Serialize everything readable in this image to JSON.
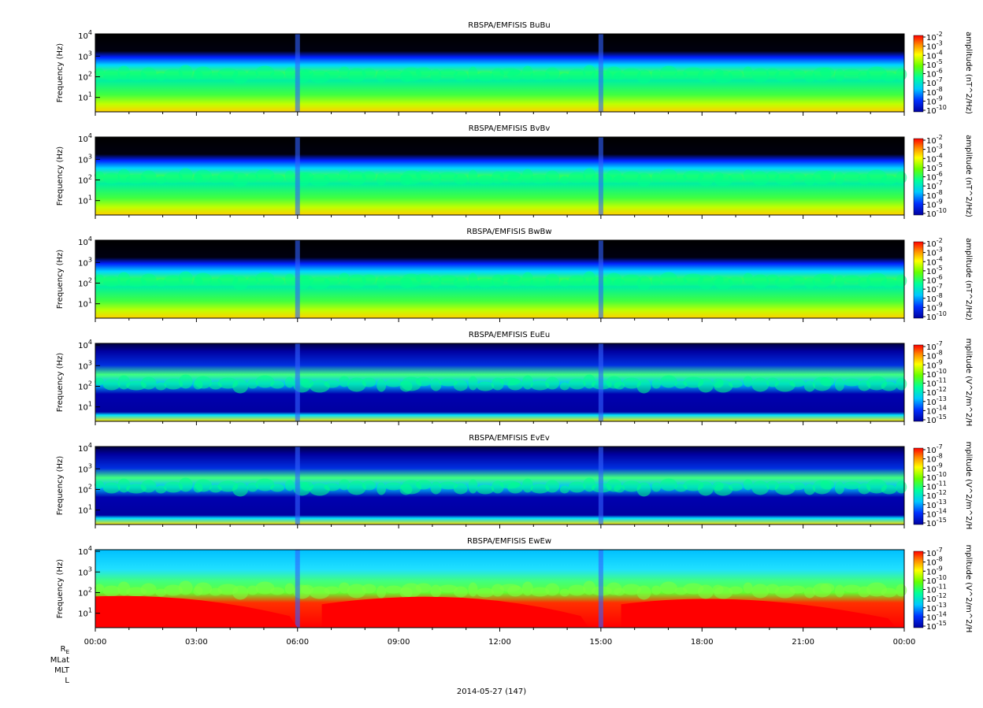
{
  "chart_data": [
    {
      "type": "heatmap",
      "title": "RBSPA/EMFISIS  BuBu",
      "ylabel": "Frequency (Hz)",
      "yscale": "log",
      "y_ticks": [
        "10^1",
        "10^2",
        "10^3",
        "10^4"
      ],
      "ylim": [
        2,
        12000
      ],
      "colorbar_label": "amplitude (nT^2/Hz)",
      "colorbar_ticks": [
        "10^-2",
        "10^-3",
        "10^-4",
        "10^-5",
        "10^-6",
        "10^-7",
        "10^-8",
        "10^-9",
        "10^-10"
      ],
      "colors": {
        "low": "#0000a0",
        "mid": "#00ff66",
        "high": "#ff0000"
      }
    },
    {
      "type": "heatmap",
      "title": "RBSPA/EMFISIS  BvBv",
      "ylabel": "Frequency (Hz)",
      "yscale": "log",
      "y_ticks": [
        "10^1",
        "10^2",
        "10^3",
        "10^4"
      ],
      "ylim": [
        2,
        12000
      ],
      "colorbar_label": "amplitude (nT^2/Hz)",
      "colorbar_ticks": [
        "10^-2",
        "10^-3",
        "10^-4",
        "10^-5",
        "10^-6",
        "10^-7",
        "10^-8",
        "10^-9",
        "10^-10"
      ]
    },
    {
      "type": "heatmap",
      "title": "RBSPA/EMFISIS  BwBw",
      "ylabel": "Frequency (Hz)",
      "yscale": "log",
      "y_ticks": [
        "10^1",
        "10^2",
        "10^3",
        "10^4"
      ],
      "ylim": [
        2,
        12000
      ],
      "colorbar_label": "amplitude (nT^2/Hz)",
      "colorbar_ticks": [
        "10^-2",
        "10^-3",
        "10^-4",
        "10^-5",
        "10^-6",
        "10^-7",
        "10^-8",
        "10^-9",
        "10^-10"
      ]
    },
    {
      "type": "heatmap",
      "title": "RBSPA/EMFISIS  EuEu",
      "ylabel": "Frequency (Hz)",
      "yscale": "log",
      "y_ticks": [
        "10^1",
        "10^2",
        "10^3",
        "10^4"
      ],
      "ylim": [
        2,
        12000
      ],
      "colorbar_label": "mplitude (V^2/m^2/H",
      "colorbar_ticks": [
        "10^-7",
        "10^-8",
        "10^-9",
        "10^-10",
        "10^-11",
        "10^-12",
        "10^-13",
        "10^-14",
        "10^-15"
      ]
    },
    {
      "type": "heatmap",
      "title": "RBSPA/EMFISIS  EvEv",
      "ylabel": "Frequency (Hz)",
      "yscale": "log",
      "y_ticks": [
        "10^1",
        "10^2",
        "10^3",
        "10^4"
      ],
      "ylim": [
        2,
        12000
      ],
      "colorbar_label": "mplitude (V^2/m^2/H",
      "colorbar_ticks": [
        "10^-7",
        "10^-8",
        "10^-9",
        "10^-10",
        "10^-11",
        "10^-12",
        "10^-13",
        "10^-14",
        "10^-15"
      ]
    },
    {
      "type": "heatmap",
      "title": "RBSPA/EMFISIS  EwEw",
      "ylabel": "Frequency (Hz)",
      "yscale": "log",
      "y_ticks": [
        "10^1",
        "10^2",
        "10^3",
        "10^4"
      ],
      "ylim": [
        2,
        12000
      ],
      "colorbar_label": "mplitude (V^2/m^2/H",
      "colorbar_ticks": [
        "10^-7",
        "10^-8",
        "10^-9",
        "10^-10",
        "10^-11",
        "10^-12",
        "10^-13",
        "10^-14",
        "10^-15"
      ]
    }
  ],
  "x_axis": {
    "ticks": [
      "00:00",
      "03:00",
      "06:00",
      "09:00",
      "12:00",
      "15:00",
      "18:00",
      "21:00",
      "00:00"
    ],
    "date": "2014-05-27 (147)",
    "ephemeris_labels": [
      "R",
      "MLat",
      "MLT",
      "L"
    ],
    "ephemeris_subscript": "E"
  }
}
